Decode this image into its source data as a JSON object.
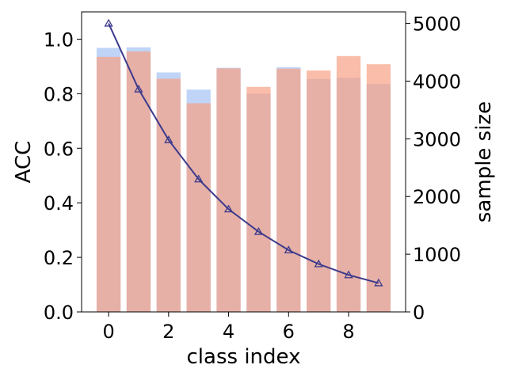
{
  "chart_data": {
    "type": "bar",
    "x": [
      0,
      1,
      2,
      3,
      4,
      5,
      6,
      7,
      8,
      9
    ],
    "xlabel": "class index",
    "ylabel": "ACC",
    "y2label": "sample size",
    "xlim": [
      -0.9,
      9.9
    ],
    "ylim": [
      0,
      1.1
    ],
    "y2lim": [
      0,
      5200
    ],
    "x_ticks": [
      "0",
      "2",
      "4",
      "6",
      "8"
    ],
    "y_ticks": [
      "0.0",
      "0.2",
      "0.4",
      "0.6",
      "0.8",
      "1.0"
    ],
    "y2_ticks": [
      "0",
      "1000",
      "2000",
      "3000",
      "4000",
      "5000"
    ],
    "grid": false,
    "series": [
      {
        "type": "bar",
        "axis": "left",
        "color": "#a4c2f4",
        "values": [
          0.968,
          0.97,
          0.878,
          0.815,
          0.895,
          0.8,
          0.897,
          0.854,
          0.858,
          0.836
        ]
      },
      {
        "type": "bar",
        "axis": "left",
        "color": "#f7a184",
        "values": [
          0.935,
          0.955,
          0.855,
          0.765,
          0.893,
          0.825,
          0.892,
          0.885,
          0.938,
          0.908
        ]
      },
      {
        "type": "line",
        "axis": "right",
        "color": "#3c3a8b",
        "marker": "triangle",
        "values": [
          5000,
          3860,
          2980,
          2300,
          1780,
          1390,
          1070,
          830,
          640,
          500
        ]
      }
    ]
  }
}
